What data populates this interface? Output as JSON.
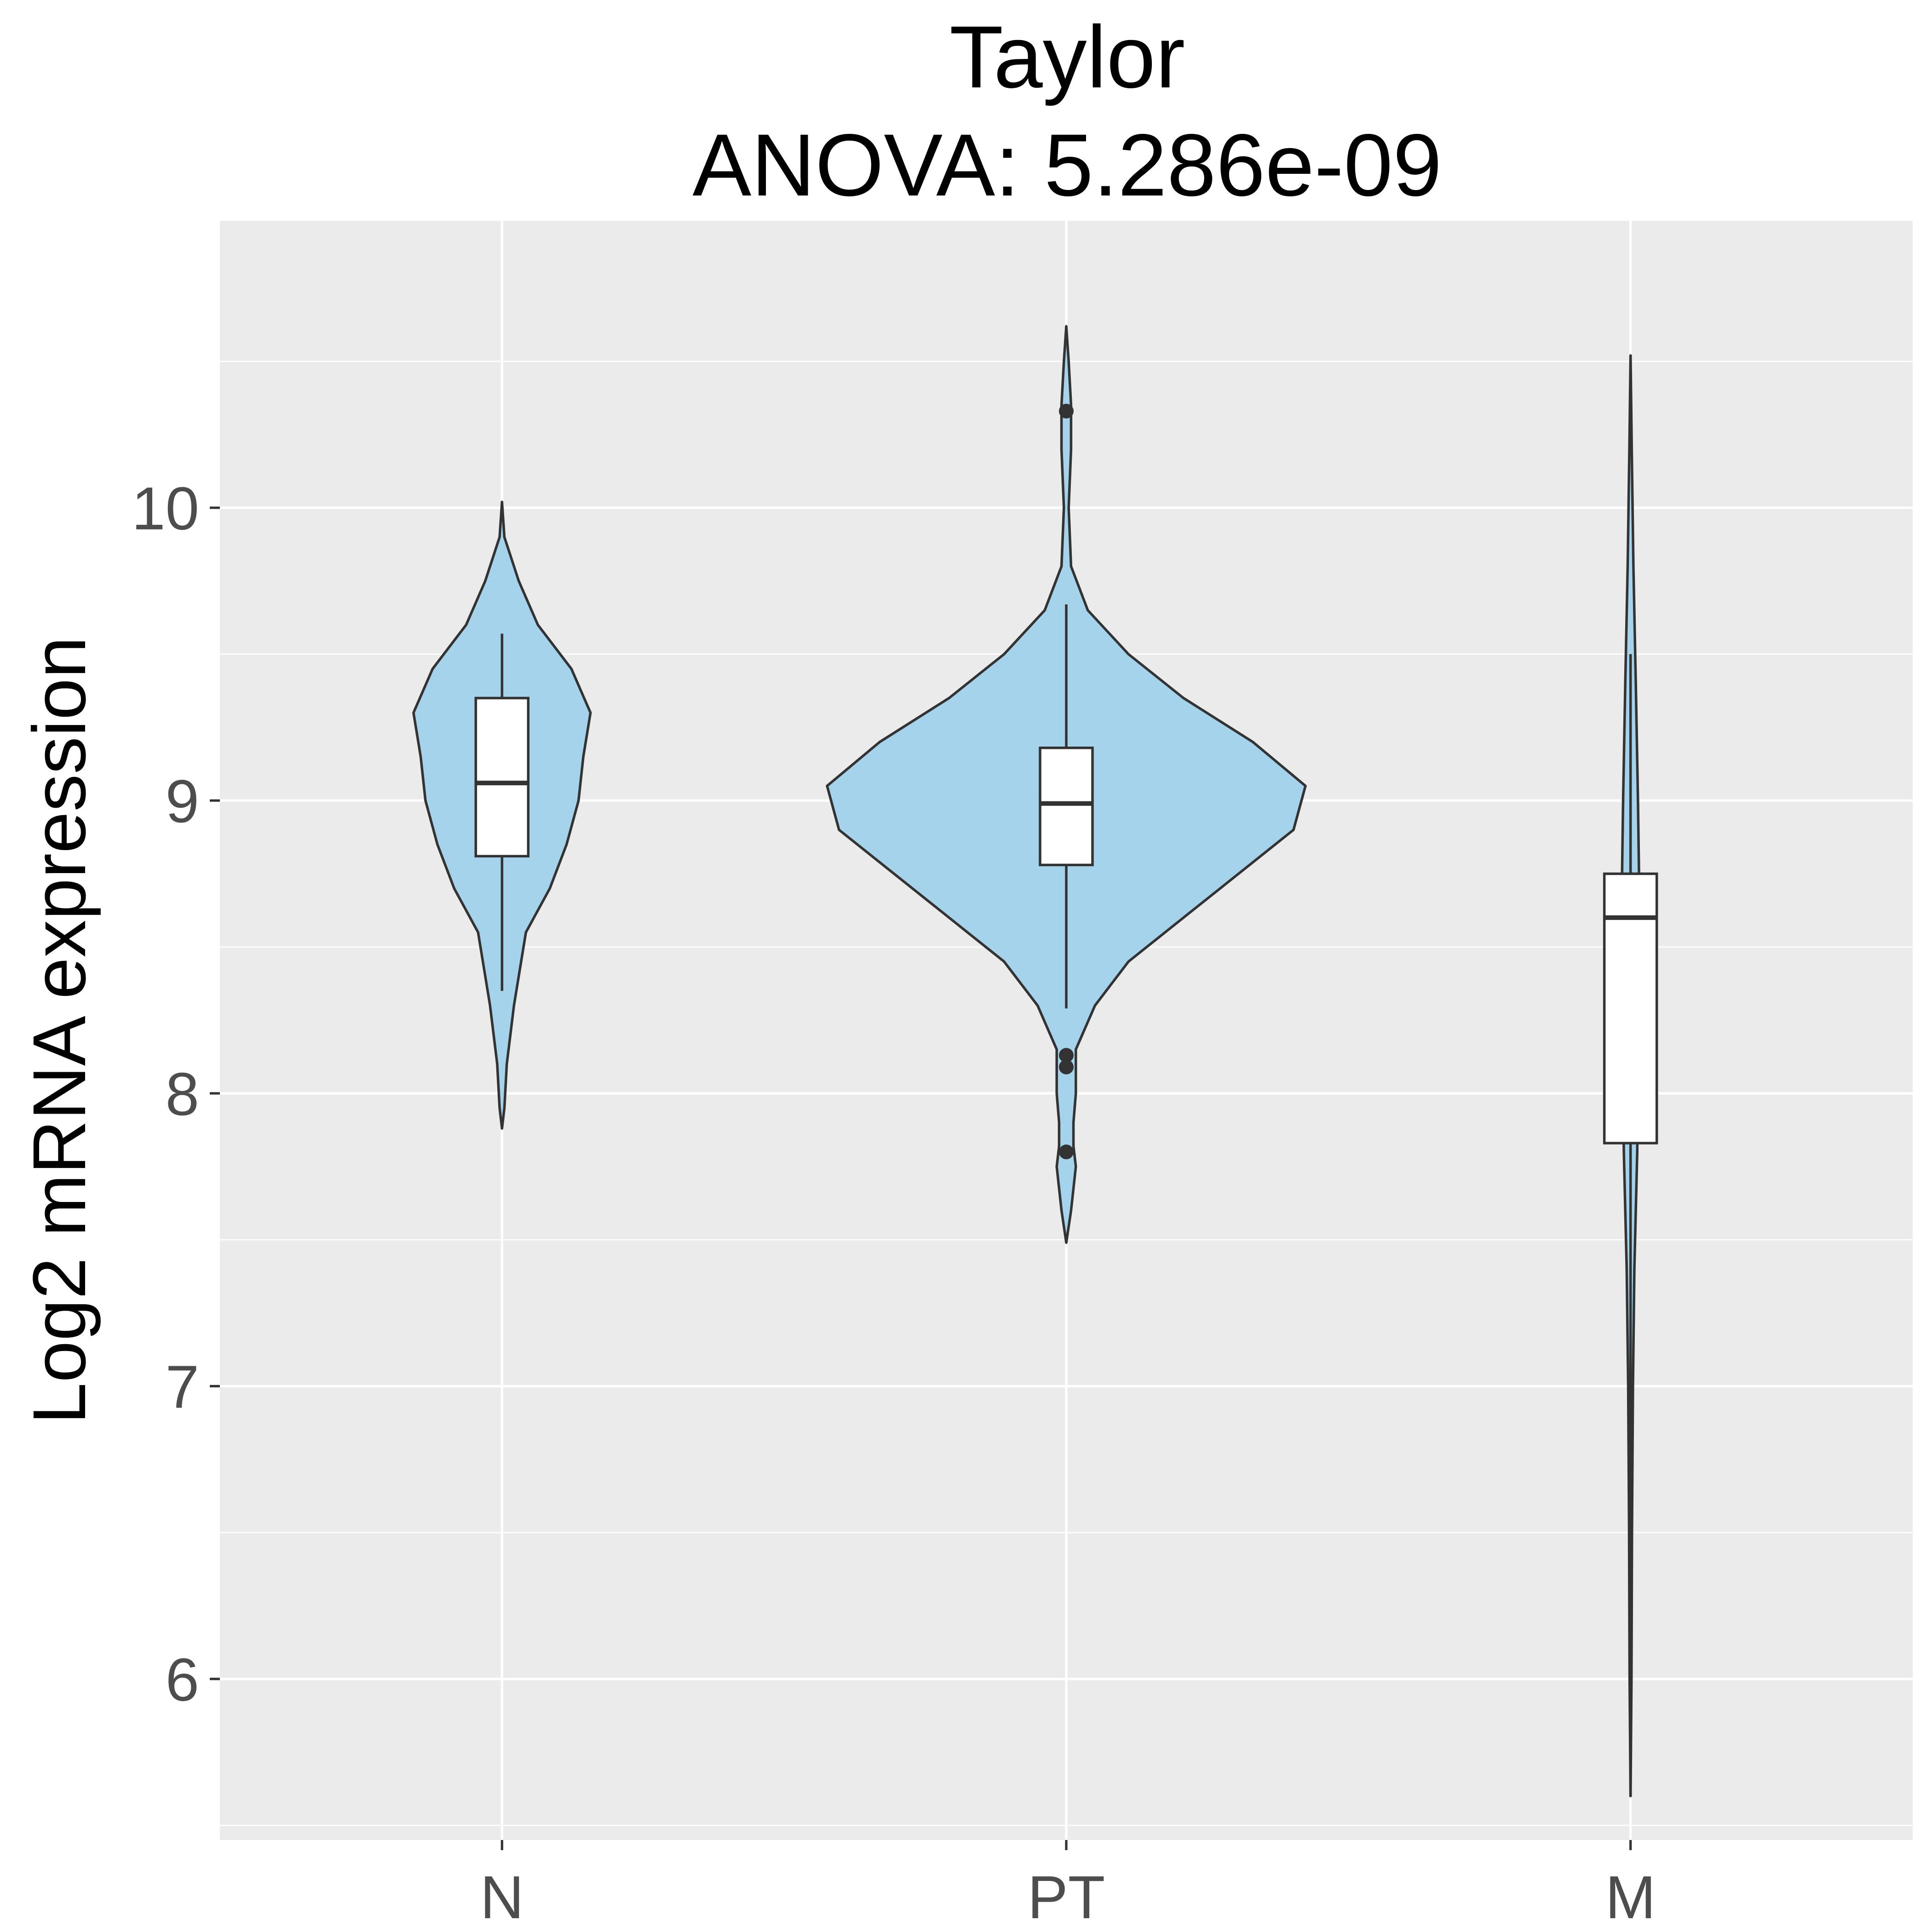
{
  "chart_data": {
    "type": "violin",
    "title": "Taylor",
    "subtitle": "ANOVA: 5.286e-09",
    "xlabel": "",
    "ylabel": "Log2 mRNA expression",
    "categories": [
      "N",
      "PT",
      "M"
    ],
    "yticks": [
      "6",
      "7",
      "8",
      "9",
      "10"
    ],
    "ylim": [
      5.45,
      10.98
    ],
    "grid": true,
    "legend": "none",
    "colors": {
      "violin_fill": "#a6d3ec",
      "panel_bg": "#ebebeb",
      "grid": "#ffffff",
      "outline": "#333333",
      "box_fill": "#ffffff"
    },
    "series": [
      {
        "category": "N",
        "box": {
          "whisker_low": 8.35,
          "q1": 8.81,
          "median": 9.06,
          "q3": 9.35,
          "whisker_high": 9.57
        },
        "outliers": [],
        "violin": [
          [
            7.88,
            0.0
          ],
          [
            7.95,
            0.01
          ],
          [
            8.1,
            0.02
          ],
          [
            8.3,
            0.05
          ],
          [
            8.55,
            0.1
          ],
          [
            8.7,
            0.2
          ],
          [
            8.85,
            0.27
          ],
          [
            9.0,
            0.32
          ],
          [
            9.15,
            0.34
          ],
          [
            9.3,
            0.37
          ],
          [
            9.45,
            0.29
          ],
          [
            9.6,
            0.15
          ],
          [
            9.75,
            0.07
          ],
          [
            9.9,
            0.01
          ],
          [
            10.02,
            0.0
          ]
        ]
      },
      {
        "category": "PT",
        "box": {
          "whisker_low": 8.29,
          "q1": 8.78,
          "median": 8.99,
          "q3": 9.18,
          "whisker_high": 9.67
        },
        "outliers": [
          8.13,
          8.09,
          7.8,
          10.33
        ],
        "violin": [
          [
            7.49,
            0.0
          ],
          [
            7.6,
            0.02
          ],
          [
            7.75,
            0.04
          ],
          [
            7.82,
            0.03
          ],
          [
            7.9,
            0.03
          ],
          [
            8.0,
            0.04
          ],
          [
            8.15,
            0.04
          ],
          [
            8.3,
            0.12
          ],
          [
            8.45,
            0.26
          ],
          [
            8.6,
            0.49
          ],
          [
            8.75,
            0.72
          ],
          [
            8.9,
            0.95
          ],
          [
            9.05,
            1.0
          ],
          [
            9.2,
            0.78
          ],
          [
            9.35,
            0.49
          ],
          [
            9.5,
            0.26
          ],
          [
            9.65,
            0.09
          ],
          [
            9.8,
            0.02
          ],
          [
            10.0,
            0.01
          ],
          [
            10.2,
            0.02
          ],
          [
            10.35,
            0.02
          ],
          [
            10.5,
            0.01
          ],
          [
            10.62,
            0.0
          ]
        ]
      },
      {
        "category": "M",
        "box": {
          "whisker_low": 5.6,
          "q1": 7.83,
          "median": 8.6,
          "q3": 8.75,
          "whisker_high": 9.5
        },
        "outliers": [],
        "violin": [
          [
            5.6,
            0.0
          ],
          [
            6.0,
            0.004
          ],
          [
            6.5,
            0.006
          ],
          [
            7.0,
            0.01
          ],
          [
            7.4,
            0.016
          ],
          [
            7.8,
            0.028
          ],
          [
            8.2,
            0.034
          ],
          [
            8.6,
            0.038
          ],
          [
            9.0,
            0.031
          ],
          [
            9.4,
            0.022
          ],
          [
            9.8,
            0.012
          ],
          [
            10.2,
            0.005
          ],
          [
            10.52,
            0.0
          ]
        ]
      }
    ]
  }
}
